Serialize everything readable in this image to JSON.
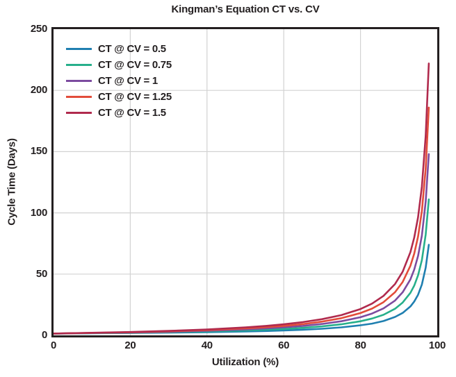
{
  "chart": {
    "title": "Kingman’s Equation CT vs. CV",
    "xlabel": "Utilization (%)",
    "ylabel": "Cycle Time (Days)"
  },
  "colors": {
    "text": "#231f20",
    "plot_border": "#231f20",
    "gridline": "#d2d2d2",
    "background": "#ffffff"
  },
  "chart_data": {
    "type": "line",
    "title": "Kingman’s Equation CT vs. CV",
    "xlabel": "Utilization (%)",
    "ylabel": "Cycle Time (Days)",
    "xlim": [
      0,
      100
    ],
    "ylim": [
      0,
      250
    ],
    "xticks": [
      "0",
      "20",
      "40",
      "60",
      "80",
      "100"
    ],
    "yticks": [
      "0",
      "50",
      "100",
      "150",
      "200",
      "250"
    ],
    "grid": true,
    "legend_position": "upper-left",
    "x": [
      0,
      10,
      20,
      30,
      40,
      50,
      55,
      60,
      65,
      70,
      75,
      80,
      83,
      86,
      89,
      91,
      93,
      94,
      95,
      96,
      97,
      97.8
    ],
    "series": [
      {
        "name": "CT @ CV = 0.5",
        "color": "#1f7fb0",
        "values": [
          1.5,
          1.7,
          1.9,
          2.2,
          2.6,
          3.2,
          3.5,
          4.0,
          4.6,
          5.4,
          6.5,
          8.2,
          9.6,
          11.7,
          15.0,
          18.3,
          23.6,
          27.6,
          33.1,
          41.5,
          55.3,
          74.0
        ]
      },
      {
        "name": "CT @ CV = 0.75",
        "color": "#27af8b",
        "values": [
          1.5,
          1.8,
          2.1,
          2.6,
          3.2,
          4.0,
          4.6,
          5.2,
          6.1,
          7.3,
          9.0,
          11.5,
          13.7,
          16.8,
          21.7,
          26.8,
          34.7,
          40.6,
          49.0,
          61.4,
          82.3,
          111.0
        ]
      },
      {
        "name": "CT @ CV = 1",
        "color": "#7c4b9f",
        "values": [
          1.5,
          1.9,
          2.3,
          2.9,
          3.7,
          4.8,
          5.6,
          6.5,
          7.7,
          9.3,
          11.5,
          14.8,
          17.8,
          22.0,
          28.4,
          35.2,
          45.7,
          53.7,
          64.8,
          81.4,
          109.2,
          148.0
        ]
      },
      {
        "name": "CT @ CV = 1.25",
        "color": "#e24c3a",
        "values": [
          1.5,
          2.0,
          2.5,
          3.3,
          4.3,
          5.7,
          6.6,
          7.7,
          9.2,
          11.2,
          14.0,
          18.2,
          21.8,
          27.1,
          35.2,
          43.6,
          56.8,
          66.7,
          80.6,
          101.4,
          136.1,
          186.0
        ]
      },
      {
        "name": "CT @ CV = 1.5",
        "color": "#b02a4d",
        "values": [
          1.5,
          2.1,
          2.7,
          3.6,
          4.8,
          6.5,
          7.6,
          9.0,
          10.8,
          13.2,
          16.5,
          21.5,
          25.9,
          32.2,
          41.9,
          52.0,
          67.9,
          79.8,
          96.4,
          121.4,
          163.0,
          222.0
        ]
      }
    ]
  }
}
